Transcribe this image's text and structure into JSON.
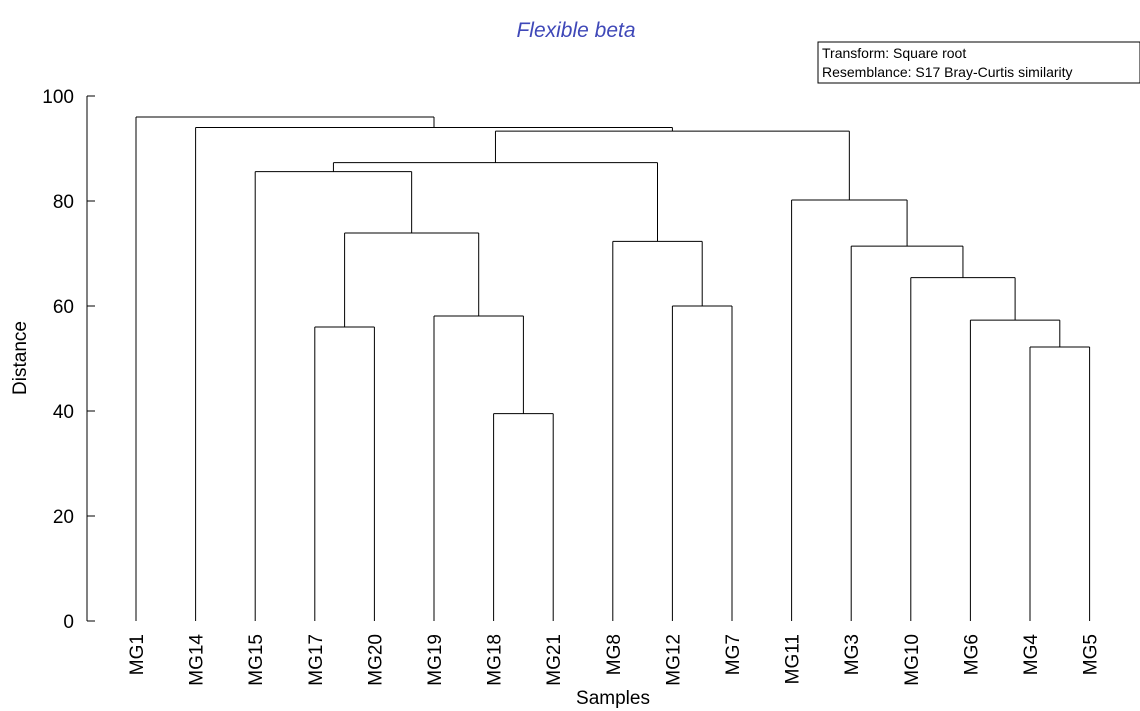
{
  "chart_data": {
    "type": "dendrogram",
    "title": "Flexible beta",
    "xlabel": "Samples",
    "ylabel": "Distance",
    "ylim": [
      0,
      100
    ],
    "yticks": [
      "0",
      "20",
      "40",
      "60",
      "80",
      "100"
    ],
    "grid": false,
    "legend_box": {
      "position": "top-right",
      "lines": [
        "Transform: Square root",
        "Resemblance: S17 Bray-Curtis similarity"
      ]
    },
    "leaves": [
      "MG1",
      "MG14",
      "MG15",
      "MG17",
      "MG20",
      "MG19",
      "MG18",
      "MG21",
      "MG8",
      "MG12",
      "MG7",
      "MG11",
      "MG3",
      "MG10",
      "MG6",
      "MG4",
      "MG5"
    ],
    "merges": [
      {
        "id": "n1",
        "left": "MG18",
        "right": "MG21",
        "height": 39.5
      },
      {
        "id": "n2",
        "left": "MG4",
        "right": "MG5",
        "height": 52.2
      },
      {
        "id": "n3",
        "left": "MG17",
        "right": "MG20",
        "height": 56.0
      },
      {
        "id": "n4",
        "left": "MG6",
        "right": "n2",
        "height": 57.3
      },
      {
        "id": "n5",
        "left": "MG19",
        "right": "n1",
        "height": 58.1
      },
      {
        "id": "n6",
        "left": "MG12",
        "right": "MG7",
        "height": 60.0
      },
      {
        "id": "n7",
        "left": "MG10",
        "right": "n4",
        "height": 65.4
      },
      {
        "id": "n8",
        "left": "MG3",
        "right": "n7",
        "height": 71.4
      },
      {
        "id": "n9",
        "left": "MG8",
        "right": "n6",
        "height": 72.3
      },
      {
        "id": "n10",
        "left": "n3",
        "right": "n5",
        "height": 73.9
      },
      {
        "id": "n11",
        "left": "MG11",
        "right": "n8",
        "height": 80.2
      },
      {
        "id": "n12",
        "left": "MG15",
        "right": "n10",
        "height": 85.6
      },
      {
        "id": "n13",
        "left": "n12",
        "right": "n9",
        "height": 87.3
      },
      {
        "id": "n14",
        "left": "n13",
        "right": "n11",
        "height": 93.3
      },
      {
        "id": "n15",
        "left": "MG14",
        "right": "n14",
        "height": 94.0
      },
      {
        "id": "n16",
        "left": "MG1",
        "right": "n15",
        "height": 96.0
      }
    ]
  },
  "colors": {
    "title": "#3f48b8",
    "lines": "#000000",
    "background": "#ffffff"
  }
}
